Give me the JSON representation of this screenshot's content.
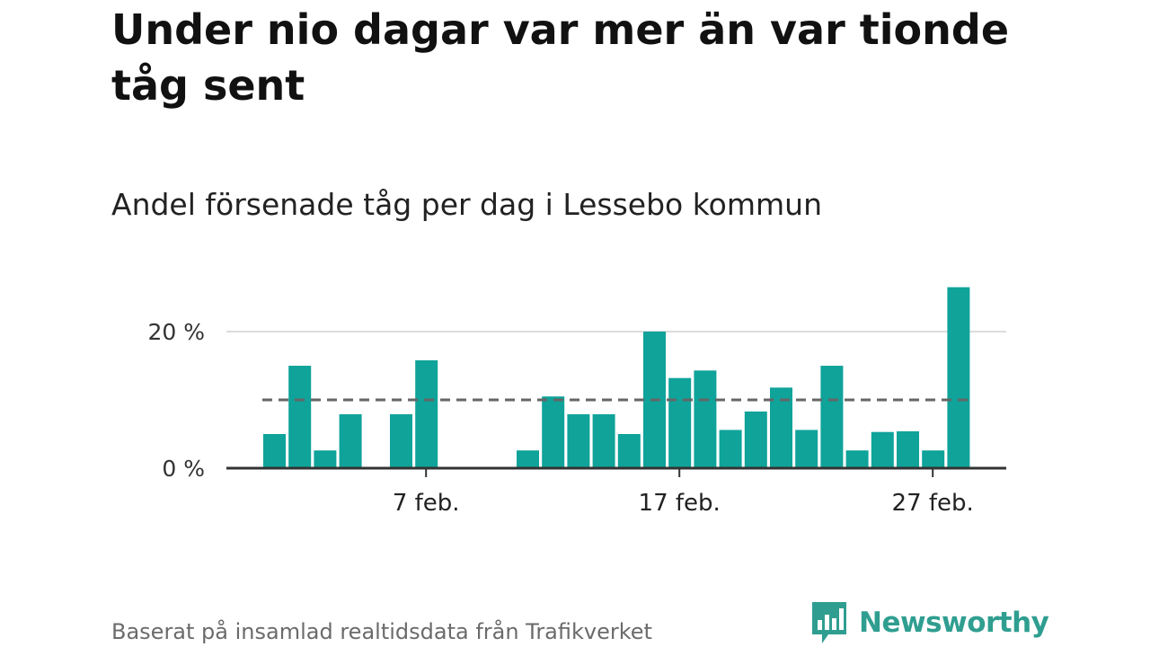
{
  "title": "Under nio dagar var mer än var tionde tåg sent",
  "subtitle": "Andel försenade tåg per dag i Lessebo kommun",
  "source": "Baserat på insamlad realtidsdata från Trafikverket",
  "brand": {
    "name": "Newsworthy",
    "color": "#2f9e90",
    "icon": "newsworthy-logo-icon"
  },
  "colors": {
    "bar": "#0fa39a",
    "reference_line": "#666666",
    "grid": "#dcdcdc",
    "axis": "#333333"
  },
  "chart_data": {
    "type": "bar",
    "x_unit": "day of February",
    "x": [
      1,
      2,
      3,
      4,
      5,
      6,
      7,
      8,
      9,
      10,
      11,
      12,
      13,
      14,
      15,
      16,
      17,
      18,
      19,
      20,
      21,
      22,
      23,
      24,
      25,
      26,
      27,
      28
    ],
    "values": [
      5,
      15,
      2.6,
      7.9,
      0,
      7.9,
      15.8,
      0,
      0,
      0,
      2.6,
      10.5,
      7.9,
      7.9,
      5,
      20,
      13.2,
      14.3,
      5.6,
      8.3,
      11.8,
      5.6,
      15,
      2.6,
      5.3,
      5.4,
      2.6,
      26.5
    ],
    "xticks": [
      {
        "x": 7,
        "label": "7 feb."
      },
      {
        "x": 17,
        "label": "17 feb."
      },
      {
        "x": 27,
        "label": "27 feb."
      }
    ],
    "yticks": [
      {
        "value": 0,
        "label": "0 %"
      },
      {
        "value": 20,
        "label": "20 %"
      }
    ],
    "ylim": [
      0,
      27
    ],
    "reference_line": {
      "value": 10,
      "style": "dashed"
    },
    "grid": true,
    "legend": "none"
  }
}
